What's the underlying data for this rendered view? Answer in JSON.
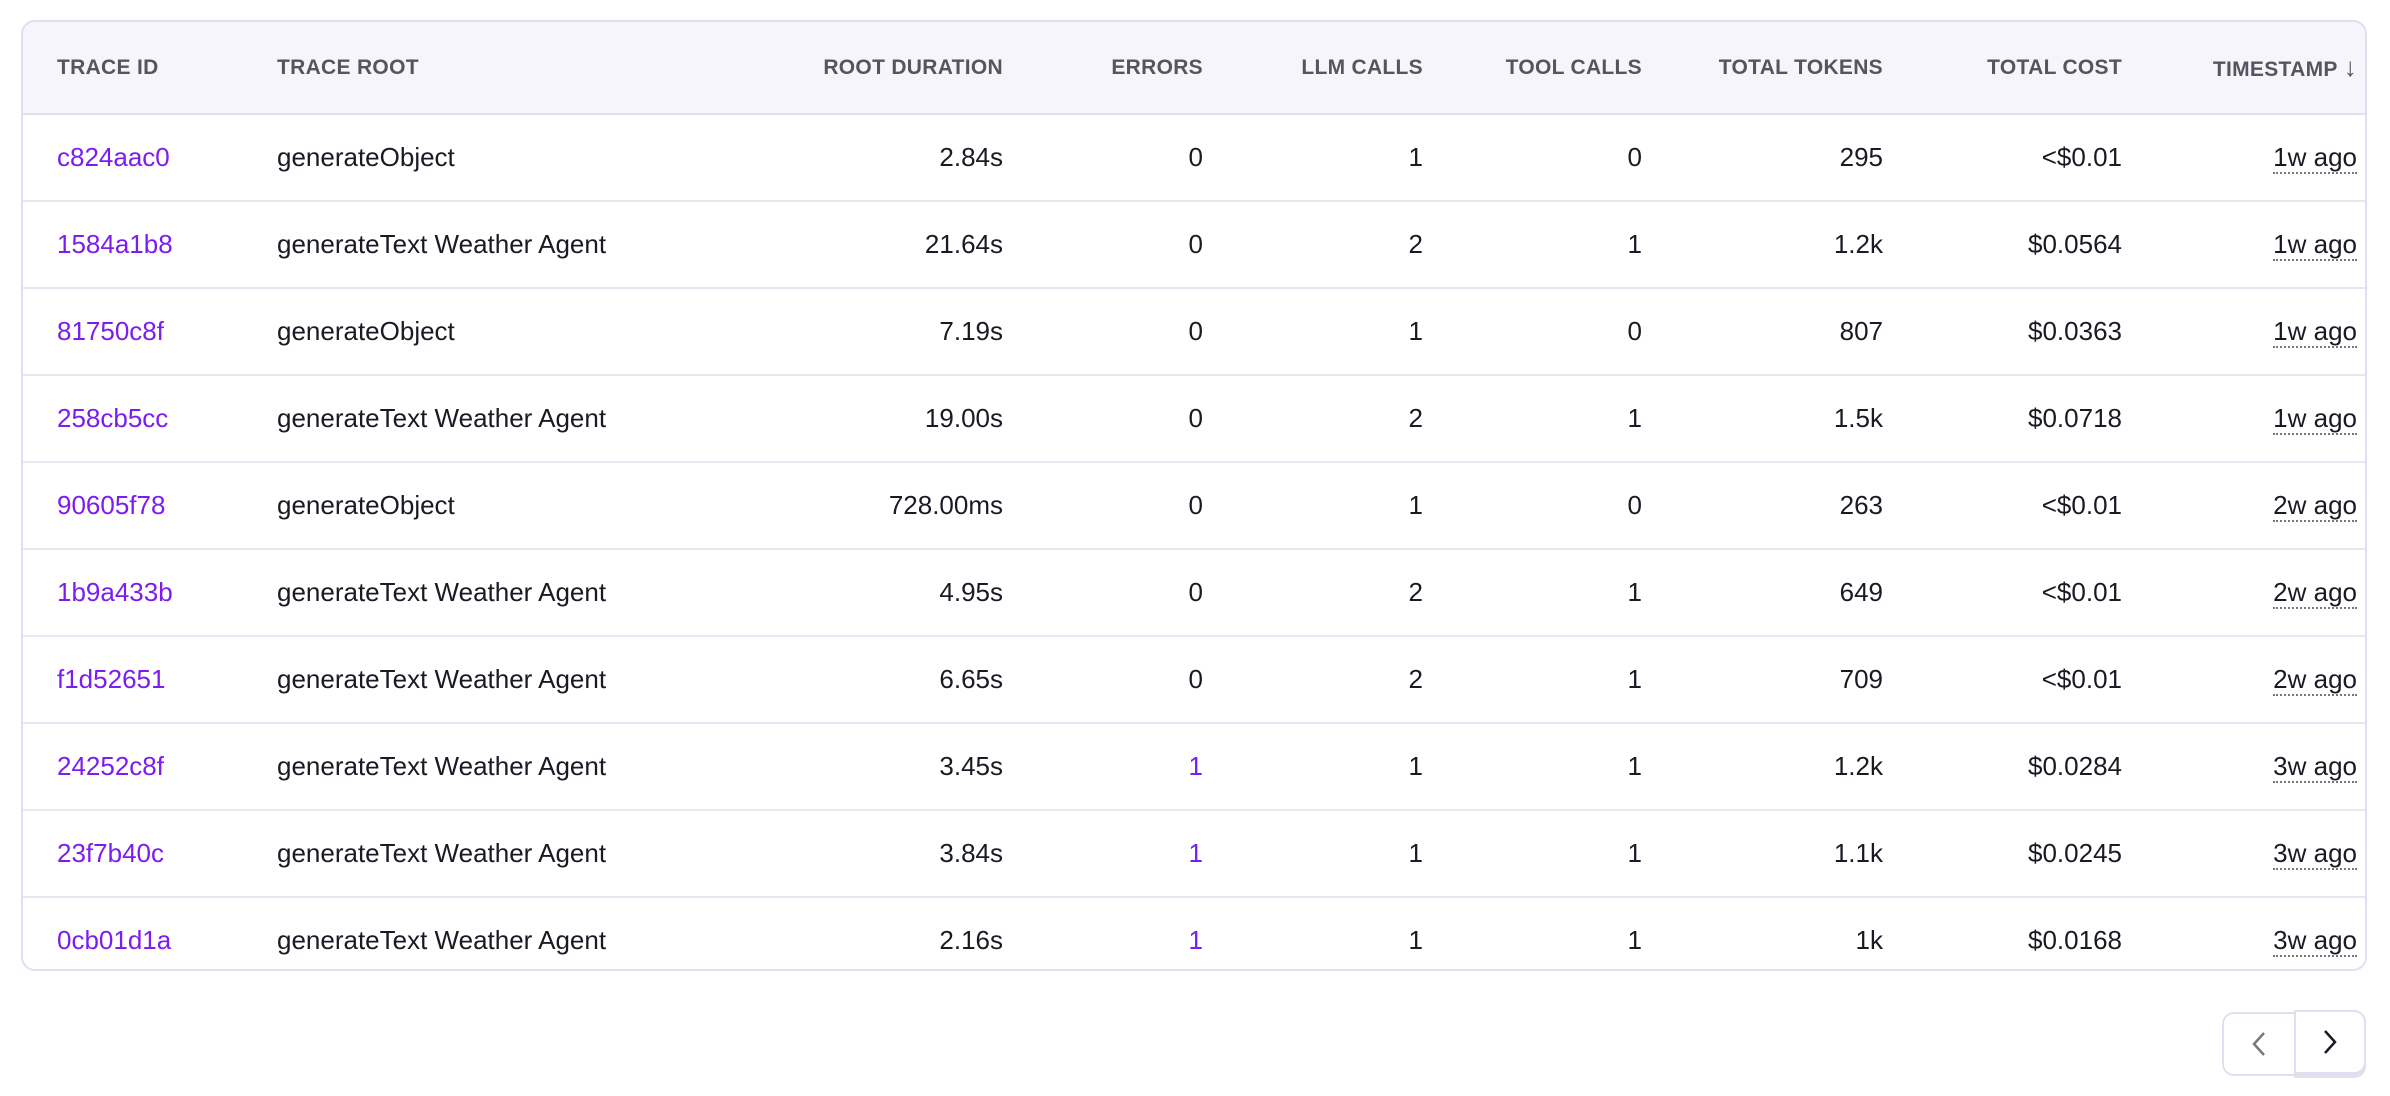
{
  "columns": [
    "Trace ID",
    "Trace Root",
    "Root Duration",
    "Errors",
    "LLM Calls",
    "Tool Calls",
    "Total Tokens",
    "Total Cost",
    "Timestamp"
  ],
  "sort_icon": "arrow-down-icon",
  "rows": [
    {
      "id": "c824aac0",
      "root": "generateObject",
      "duration": "2.84s",
      "errors": "0",
      "llm": "1",
      "tool": "0",
      "tokens": "295",
      "cost": "<$0.01",
      "ts": "1w ago"
    },
    {
      "id": "1584a1b8",
      "root": "generateText Weather Agent",
      "duration": "21.64s",
      "errors": "0",
      "llm": "2",
      "tool": "1",
      "tokens": "1.2k",
      "cost": "$0.0564",
      "ts": "1w ago"
    },
    {
      "id": "81750c8f",
      "root": "generateObject",
      "duration": "7.19s",
      "errors": "0",
      "llm": "1",
      "tool": "0",
      "tokens": "807",
      "cost": "$0.0363",
      "ts": "1w ago"
    },
    {
      "id": "258cb5cc",
      "root": "generateText Weather Agent",
      "duration": "19.00s",
      "errors": "0",
      "llm": "2",
      "tool": "1",
      "tokens": "1.5k",
      "cost": "$0.0718",
      "ts": "1w ago"
    },
    {
      "id": "90605f78",
      "root": "generateObject",
      "duration": "728.00ms",
      "errors": "0",
      "llm": "1",
      "tool": "0",
      "tokens": "263",
      "cost": "<$0.01",
      "ts": "2w ago"
    },
    {
      "id": "1b9a433b",
      "root": "generateText Weather Agent",
      "duration": "4.95s",
      "errors": "0",
      "llm": "2",
      "tool": "1",
      "tokens": "649",
      "cost": "<$0.01",
      "ts": "2w ago"
    },
    {
      "id": "f1d52651",
      "root": "generateText Weather Agent",
      "duration": "6.65s",
      "errors": "0",
      "llm": "2",
      "tool": "1",
      "tokens": "709",
      "cost": "<$0.01",
      "ts": "2w ago"
    },
    {
      "id": "24252c8f",
      "root": "generateText Weather Agent",
      "duration": "3.45s",
      "errors": "1",
      "llm": "1",
      "tool": "1",
      "tokens": "1.2k",
      "cost": "$0.0284",
      "ts": "3w ago"
    },
    {
      "id": "23f7b40c",
      "root": "generateText Weather Agent",
      "duration": "3.84s",
      "errors": "1",
      "llm": "1",
      "tool": "1",
      "tokens": "1.1k",
      "cost": "$0.0245",
      "ts": "3w ago"
    },
    {
      "id": "0cb01d1a",
      "root": "generateText Weather Agent",
      "duration": "2.16s",
      "errors": "1",
      "llm": "1",
      "tool": "1",
      "tokens": "1k",
      "cost": "$0.0168",
      "ts": "3w ago"
    }
  ],
  "colors": {
    "link": "#7c1cf0",
    "border": "#e1def0",
    "header_bg": "#f6f5fb"
  },
  "pagination": {
    "prev_icon": "chevron-left-icon",
    "next_icon": "chevron-right-icon"
  }
}
